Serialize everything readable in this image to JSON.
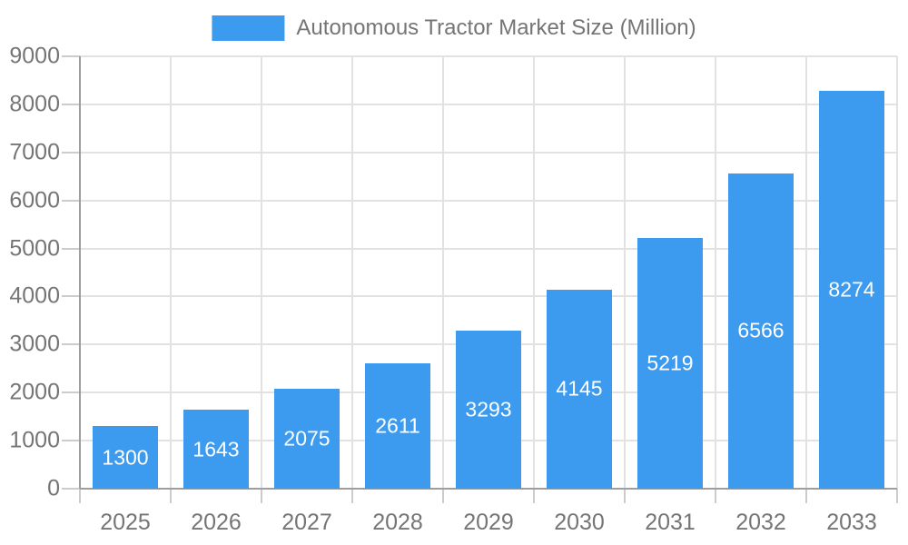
{
  "chart_data": {
    "type": "bar",
    "legend_label": "Autonomous Tractor Market Size (Million)",
    "categories": [
      "2025",
      "2026",
      "2027",
      "2028",
      "2029",
      "2030",
      "2031",
      "2032",
      "2033"
    ],
    "values": [
      1300,
      1643,
      2075,
      2611,
      3293,
      4145,
      5219,
      6566,
      8274
    ],
    "ylim": [
      0,
      9000
    ],
    "ytick_step": 1000,
    "grid": true,
    "legend_position": "top",
    "value_labels": "inside-center",
    "colors": {
      "bar": "#3C9BEE",
      "bar_label": "#FFFFFF",
      "axis_text": "#757575",
      "grid": "#E2E2E2",
      "tick": "#CCCCCC",
      "axis_line": "#9E9E9E"
    }
  }
}
